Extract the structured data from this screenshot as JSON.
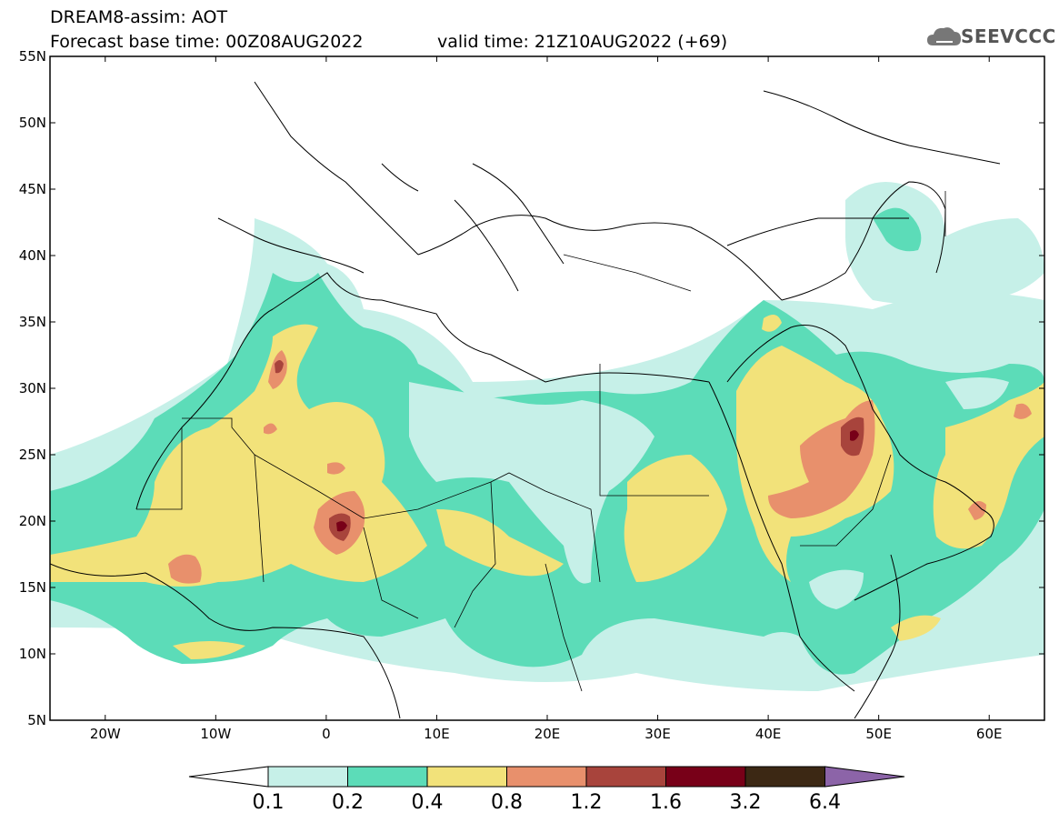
{
  "header": {
    "title_line1": "DREAM8-assim: AOT",
    "title_line2": "Forecast base time: 00Z08AUG2022",
    "valid_time": "valid time: 21Z10AUG2022 (+69)",
    "logo_text": "SEEVCCC",
    "logo_icon": "cloud-logo-icon"
  },
  "axes": {
    "lat_ticks": [
      "55N",
      "50N",
      "45N",
      "40N",
      "35N",
      "30N",
      "25N",
      "20N",
      "15N",
      "10N",
      "5N"
    ],
    "lon_ticks": [
      "20W",
      "10W",
      "0",
      "10E",
      "20E",
      "30E",
      "40E",
      "50E",
      "60E"
    ],
    "lon_range": [
      -25,
      65
    ],
    "lat_range": [
      5,
      55
    ]
  },
  "colorbar": {
    "labels": [
      "0.1",
      "0.2",
      "0.4",
      "0.8",
      "1.2",
      "1.6",
      "3.2",
      "6.4"
    ],
    "colors": [
      "#c6f0e8",
      "#5cdcb8",
      "#f2e27a",
      "#e8906c",
      "#a8443c",
      "#780018",
      "#3c2814",
      "#8c64a8"
    ]
  }
}
